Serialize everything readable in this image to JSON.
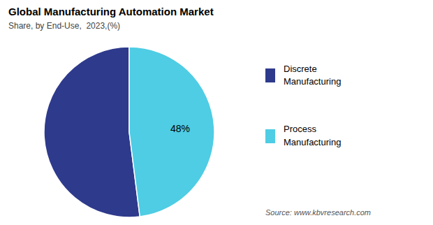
{
  "chart_data": {
    "type": "pie",
    "title": "Global Manufacturing Automation Market",
    "subtitle": "Share, by End-Use,  2023,(%)",
    "categories": [
      "Discrete\nManufacturing",
      "Process\nManufacturing"
    ],
    "values": [
      52,
      48
    ],
    "value_labels": [
      null,
      "48%"
    ],
    "colors": [
      "#2e3a8c",
      "#4ecde4"
    ],
    "legend": "right",
    "annotations": [
      "Source: www.kbvresearch.com"
    ]
  }
}
